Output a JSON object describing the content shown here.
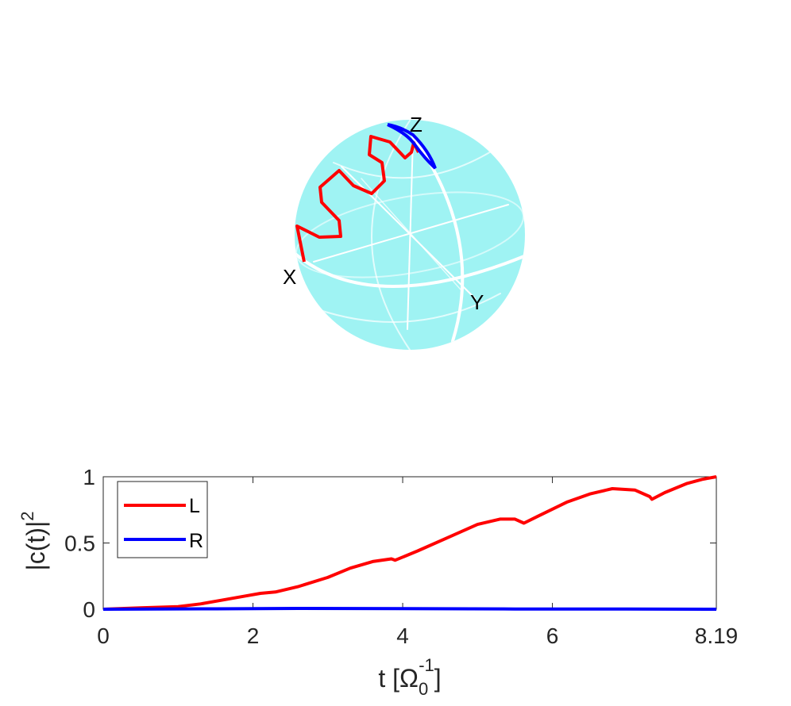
{
  "bloch_sphere": {
    "axis_labels": {
      "x": "X",
      "y": "Y",
      "z": "Z"
    },
    "colors": {
      "sphere": "#9ff3f3",
      "grid": "#ffffff",
      "path_L": "#ff0000",
      "path_R": "#0000ff"
    }
  },
  "chart_data": {
    "type": "line",
    "title": "",
    "xlabel": "t [Ω",
    "xlabel_sub": "0",
    "xlabel_sup": "-1",
    "xlabel_end": "]",
    "ylabel": "|c(t)|",
    "ylabel_sup": "2",
    "xlim": [
      0,
      8.19
    ],
    "ylim": [
      0,
      1
    ],
    "xticks": [
      0,
      2,
      4,
      6,
      8.19
    ],
    "xtick_labels": [
      "0",
      "2",
      "4",
      "6",
      "8.19"
    ],
    "yticks": [
      0,
      0.5,
      1
    ],
    "ytick_labels": [
      "0",
      "0.5",
      "1"
    ],
    "grid": false,
    "legend_position": "top-left",
    "series": [
      {
        "name": "L",
        "color": "#ff0000",
        "x": [
          0,
          0.5,
          1.0,
          1.3,
          1.6,
          1.9,
          2.1,
          2.3,
          2.6,
          3.0,
          3.3,
          3.6,
          3.85,
          3.9,
          4.2,
          4.6,
          5.0,
          5.3,
          5.5,
          5.62,
          5.8,
          6.2,
          6.5,
          6.8,
          7.1,
          7.3,
          7.33,
          7.5,
          7.8,
          8.0,
          8.19
        ],
        "y": [
          0.0,
          0.01,
          0.02,
          0.04,
          0.07,
          0.1,
          0.12,
          0.13,
          0.17,
          0.24,
          0.31,
          0.36,
          0.38,
          0.37,
          0.44,
          0.54,
          0.64,
          0.68,
          0.68,
          0.65,
          0.7,
          0.81,
          0.87,
          0.91,
          0.9,
          0.85,
          0.83,
          0.88,
          0.95,
          0.98,
          1.0
        ]
      },
      {
        "name": "R",
        "color": "#0000ff",
        "x": [
          0,
          1.5,
          2.6,
          4.0,
          5.5,
          7.0,
          8.19
        ],
        "y": [
          0.0,
          0.003,
          0.006,
          0.004,
          0.002,
          0.001,
          0.0
        ]
      }
    ]
  }
}
